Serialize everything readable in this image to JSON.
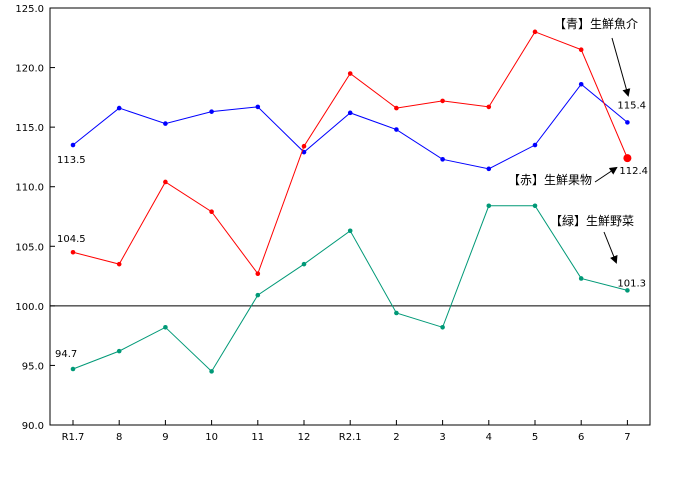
{
  "chart_data": {
    "type": "line",
    "categories": [
      "R1.7",
      "8",
      "9",
      "10",
      "11",
      "12",
      "R2.1",
      "2",
      "3",
      "4",
      "5",
      "6",
      "7"
    ],
    "ylim": [
      90.0,
      125.0
    ],
    "yticks": [
      "90.0",
      "95.0",
      "100.0",
      "105.0",
      "110.0",
      "115.0",
      "120.0",
      "125.0"
    ],
    "reference_line": 100.0,
    "grid": false,
    "series": [
      {
        "name": "【青】生鮮魚介",
        "color": "#0000ff",
        "values": [
          113.5,
          116.6,
          115.3,
          116.3,
          116.7,
          112.9,
          116.2,
          114.8,
          112.3,
          111.5,
          113.5,
          118.6,
          115.4
        ],
        "first_label": "113.5",
        "last_label": "115.4"
      },
      {
        "name": "【赤】生鮮果物",
        "color": "#ff0000",
        "values": [
          104.5,
          103.5,
          110.4,
          107.9,
          102.7,
          113.4,
          119.5,
          116.6,
          117.2,
          116.7,
          123.0,
          121.5,
          112.4
        ],
        "first_label": "104.5",
        "last_label": "112.4"
      },
      {
        "name": "【緑】生鮮野菜",
        "color": "#009977",
        "values": [
          94.7,
          96.2,
          98.2,
          94.5,
          100.9,
          103.5,
          106.3,
          99.4,
          98.2,
          108.4,
          108.4,
          102.3,
          101.3
        ],
        "first_label": "94.7",
        "last_label": "101.3"
      }
    ]
  }
}
